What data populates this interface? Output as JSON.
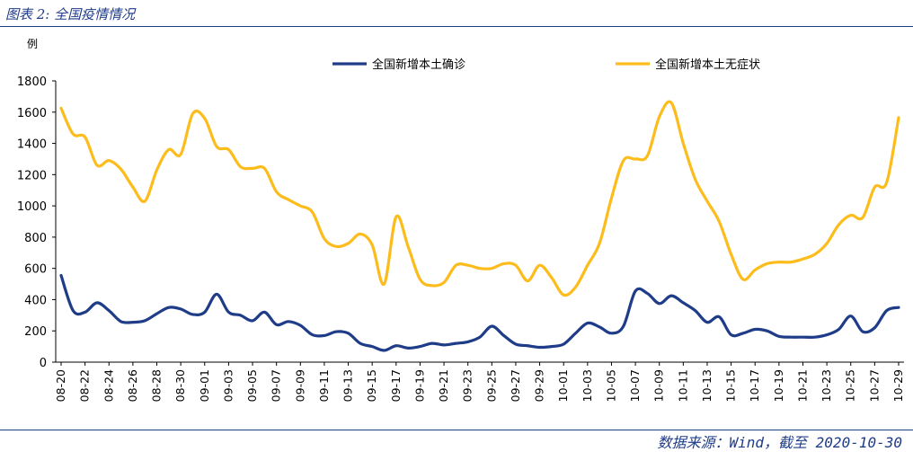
{
  "header": {
    "title": "图表 2: 全国疫情情况"
  },
  "footer": {
    "source": "数据来源：Wind，截至 2020-10-30"
  },
  "chart_data": {
    "type": "line",
    "ylabel": "例",
    "ylim": [
      0,
      1800
    ],
    "yticks": [
      0,
      200,
      400,
      600,
      800,
      1000,
      1200,
      1400,
      1600,
      1800
    ],
    "grid": false,
    "legend_position": "top",
    "x": [
      "08-20",
      "08-21",
      "08-22",
      "08-23",
      "08-24",
      "08-25",
      "08-26",
      "08-27",
      "08-28",
      "08-29",
      "08-30",
      "08-31",
      "09-01",
      "09-02",
      "09-03",
      "09-04",
      "09-05",
      "09-06",
      "09-07",
      "09-08",
      "09-09",
      "09-10",
      "09-11",
      "09-12",
      "09-13",
      "09-14",
      "09-15",
      "09-16",
      "09-17",
      "09-18",
      "09-19",
      "09-20",
      "09-21",
      "09-22",
      "09-23",
      "09-24",
      "09-25",
      "09-26",
      "09-27",
      "09-28",
      "09-29",
      "09-30",
      "10-01",
      "10-02",
      "10-03",
      "10-04",
      "10-05",
      "10-06",
      "10-07",
      "10-08",
      "10-09",
      "10-10",
      "10-11",
      "10-12",
      "10-13",
      "10-14",
      "10-15",
      "10-16",
      "10-17",
      "10-18",
      "10-19",
      "10-20",
      "10-21",
      "10-22",
      "10-23",
      "10-24",
      "10-25",
      "10-26",
      "10-27",
      "10-28",
      "10-29"
    ],
    "xticks": [
      "08-20",
      "08-22",
      "08-24",
      "08-26",
      "08-28",
      "08-30",
      "09-01",
      "09-03",
      "09-05",
      "09-07",
      "09-09",
      "09-11",
      "09-13",
      "09-15",
      "09-17",
      "09-19",
      "09-21",
      "09-23",
      "09-25",
      "09-27",
      "09-29",
      "10-01",
      "10-03",
      "10-05",
      "10-07",
      "10-09",
      "10-11",
      "10-13",
      "10-15",
      "10-17",
      "10-19",
      "10-21",
      "10-23",
      "10-25",
      "10-27",
      "10-29"
    ],
    "series": [
      {
        "name": "全国新增本土确诊",
        "color": "#1f3c88",
        "values": [
          555,
          330,
          320,
          380,
          330,
          260,
          255,
          265,
          310,
          350,
          340,
          305,
          320,
          435,
          320,
          300,
          265,
          320,
          240,
          260,
          235,
          175,
          170,
          195,
          185,
          120,
          100,
          75,
          105,
          90,
          100,
          120,
          110,
          120,
          130,
          160,
          230,
          170,
          115,
          105,
          95,
          100,
          115,
          185,
          250,
          225,
          185,
          230,
          455,
          440,
          375,
          425,
          380,
          330,
          255,
          290,
          175,
          185,
          210,
          200,
          165,
          160,
          160,
          160,
          175,
          210,
          295,
          195,
          220,
          330,
          350
        ]
      },
      {
        "name": "全国新增本土无症状",
        "color": "#fcbc1c",
        "values": [
          1625,
          1460,
          1440,
          1260,
          1290,
          1235,
          1120,
          1030,
          1230,
          1360,
          1330,
          1590,
          1560,
          1380,
          1360,
          1250,
          1240,
          1240,
          1090,
          1040,
          1000,
          960,
          790,
          740,
          760,
          820,
          750,
          500,
          930,
          740,
          530,
          490,
          510,
          620,
          620,
          600,
          600,
          630,
          620,
          520,
          620,
          540,
          430,
          480,
          620,
          760,
          1050,
          1290,
          1300,
          1320,
          1570,
          1660,
          1400,
          1170,
          1030,
          900,
          690,
          530,
          590,
          630,
          640,
          640,
          660,
          690,
          760,
          880,
          940,
          925,
          1120,
          1150,
          1565
        ]
      }
    ]
  }
}
